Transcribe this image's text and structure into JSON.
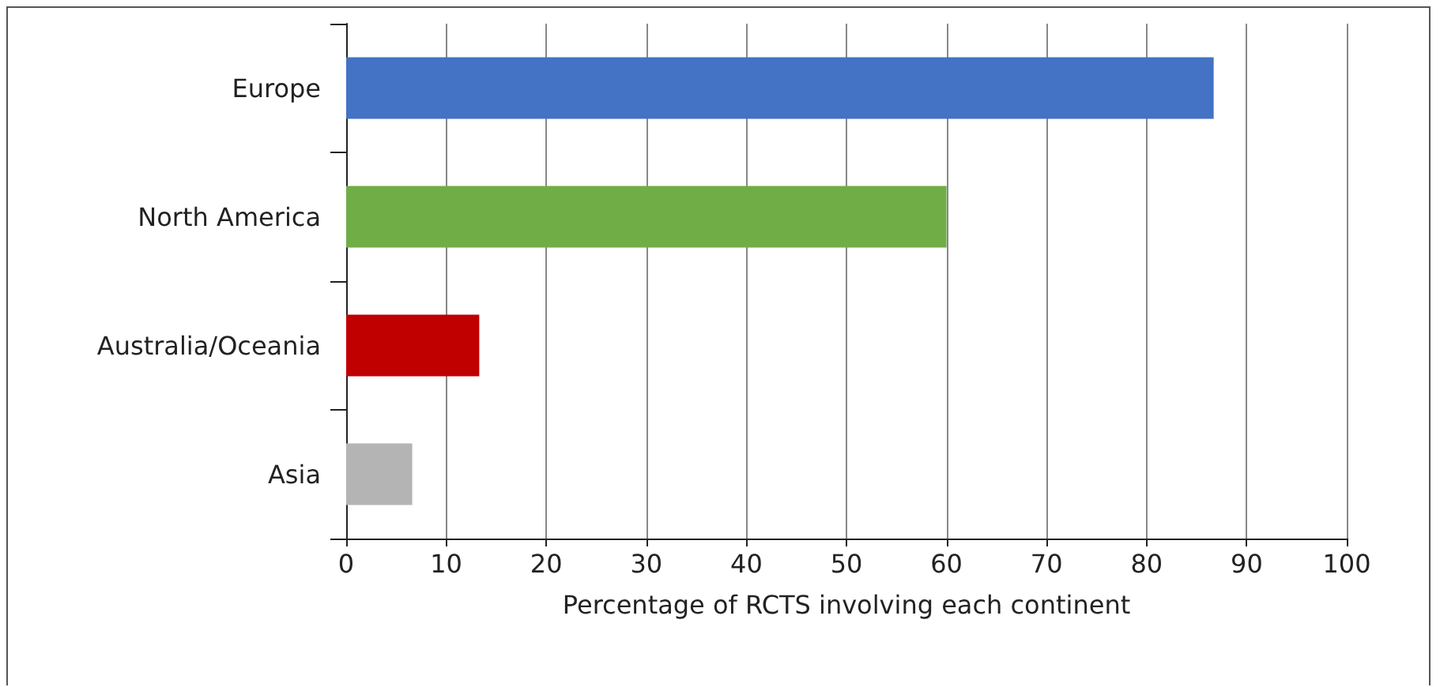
{
  "chart_data": {
    "type": "bar",
    "orientation": "horizontal",
    "xlabel": "Percentage of RCTS involving each continent",
    "categories": [
      "Europe",
      "North America",
      "Australia/Oceania",
      "Asia"
    ],
    "values": [
      86.7,
      60,
      13.3,
      6.6
    ],
    "colors": [
      "#4472c4",
      "#70ad47",
      "#c00000",
      "#b4b4b4"
    ],
    "xlim": [
      0,
      100
    ],
    "xticks": [
      0,
      10,
      20,
      30,
      40,
      50,
      60,
      70,
      80,
      90,
      100
    ],
    "grid": "x"
  }
}
